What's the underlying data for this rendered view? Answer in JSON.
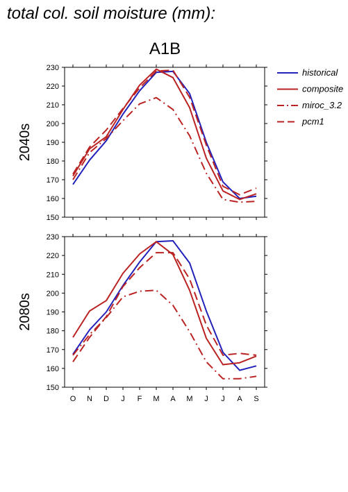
{
  "figure": {
    "title": "total col. soil moisture (mm):",
    "scenario": "A1B"
  },
  "colors": {
    "historical": "#2222bb",
    "composite": "#bb2222",
    "miroc_3.2": "#bb2222",
    "pcm1": "#bb2222"
  },
  "chart_data": [
    {
      "type": "line",
      "panel_label": "2040s",
      "categories": [
        "O",
        "N",
        "D",
        "J",
        "F",
        "M",
        "A",
        "M",
        "J",
        "J",
        "A",
        "S"
      ],
      "ylim": [
        150,
        230
      ],
      "yticks": [
        150,
        160,
        170,
        180,
        190,
        200,
        210,
        220,
        230
      ],
      "grid": false,
      "legend_position": "right",
      "series": [
        {
          "name": "historical",
          "style": "solid",
          "values": [
            167.5,
            180.5,
            190.8,
            205.0,
            217.5,
            227.3,
            227.8,
            216.0,
            190.0,
            168.8,
            160.0,
            161.2
          ]
        },
        {
          "name": "composite",
          "style": "solid",
          "values": [
            172.0,
            186.5,
            193.0,
            207.5,
            220.5,
            229.0,
            224.5,
            208.5,
            181.5,
            164.0,
            159.5,
            162.5
          ]
        },
        {
          "name": "miroc_3.2",
          "style": "dashdot",
          "values": [
            170.0,
            184.5,
            192.0,
            201.5,
            210.5,
            213.8,
            207.5,
            193.5,
            173.5,
            159.5,
            158.0,
            158.5
          ]
        },
        {
          "name": "pcm1",
          "style": "dashed",
          "values": [
            173.0,
            187.5,
            196.5,
            208.0,
            219.0,
            228.0,
            228.5,
            214.0,
            188.5,
            166.5,
            162.0,
            165.5
          ]
        }
      ]
    },
    {
      "type": "line",
      "panel_label": "2080s",
      "categories": [
        "O",
        "N",
        "D",
        "J",
        "F",
        "M",
        "A",
        "M",
        "J",
        "J",
        "A",
        "S"
      ],
      "ylim": [
        150,
        230
      ],
      "yticks": [
        150,
        160,
        170,
        180,
        190,
        200,
        210,
        220,
        230
      ],
      "grid": false,
      "legend_position": "right",
      "series": [
        {
          "name": "historical",
          "style": "solid",
          "values": [
            167.5,
            180.5,
            190.0,
            204.0,
            216.5,
            227.3,
            227.8,
            216.0,
            190.5,
            168.5,
            159.0,
            161.3
          ]
        },
        {
          "name": "composite",
          "style": "solid",
          "values": [
            176.5,
            190.5,
            196.0,
            210.5,
            220.8,
            227.3,
            220.5,
            201.5,
            176.0,
            162.0,
            163.0,
            166.5
          ]
        },
        {
          "name": "miroc_3.2",
          "style": "dashdot",
          "values": [
            167.0,
            178.0,
            187.0,
            198.0,
            201.0,
            201.5,
            193.5,
            179.5,
            163.5,
            154.5,
            154.5,
            155.8
          ]
        },
        {
          "name": "pcm1",
          "style": "dashed",
          "values": [
            163.5,
            176.5,
            187.5,
            203.5,
            213.5,
            221.5,
            221.5,
            207.5,
            183.0,
            167.0,
            168.0,
            167.0
          ]
        }
      ]
    }
  ]
}
